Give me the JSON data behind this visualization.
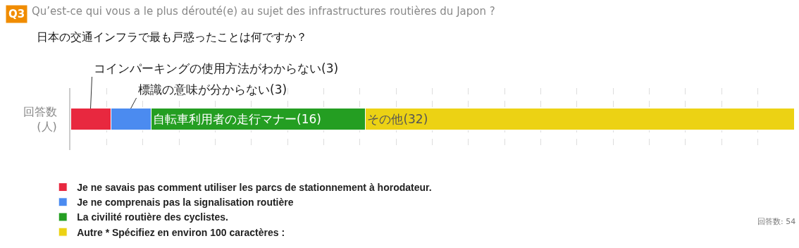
{
  "chart_data": {
    "type": "bar",
    "orientation": "horizontal",
    "stacked": true,
    "title": "Qu’est-ce qui vous a le plus dérouté(e) au sujet des infrastructures routières du Japon ?",
    "subtitle": "日本の交通インフラで最も戸惑ったことは何ですか？",
    "categories": [
      "回答数\n(人)"
    ],
    "series": [
      {
        "name": "Je ne savais pas comment utiliser les parcs de stationnement à horodateur.",
        "color": "#e8283f",
        "values": [
          3
        ],
        "value_labels": [
          "コインパーキングの使用方法がわからない(3)"
        ]
      },
      {
        "name": "Je ne comprenais pas la signalisation routière",
        "color": "#4b8bf0",
        "values": [
          3
        ],
        "value_labels": [
          "標識の意味が分からない(3)"
        ]
      },
      {
        "name": "La civilité routière des cyclistes.",
        "color": "#249e22",
        "values": [
          16
        ],
        "value_labels": [
          "自転車利用者の走行マナー(16)"
        ]
      },
      {
        "name": "Autre * Spécifiez en environ 100 caractères :",
        "color": "#ecd214",
        "values": [
          32
        ],
        "value_labels": [
          "その他(32)"
        ]
      }
    ],
    "xlim": [
      0,
      54
    ],
    "grid": "x",
    "tick_labels": "y",
    "legend": "bottom",
    "annotations": [
      "Q3",
      "回答数: 54"
    ]
  }
}
